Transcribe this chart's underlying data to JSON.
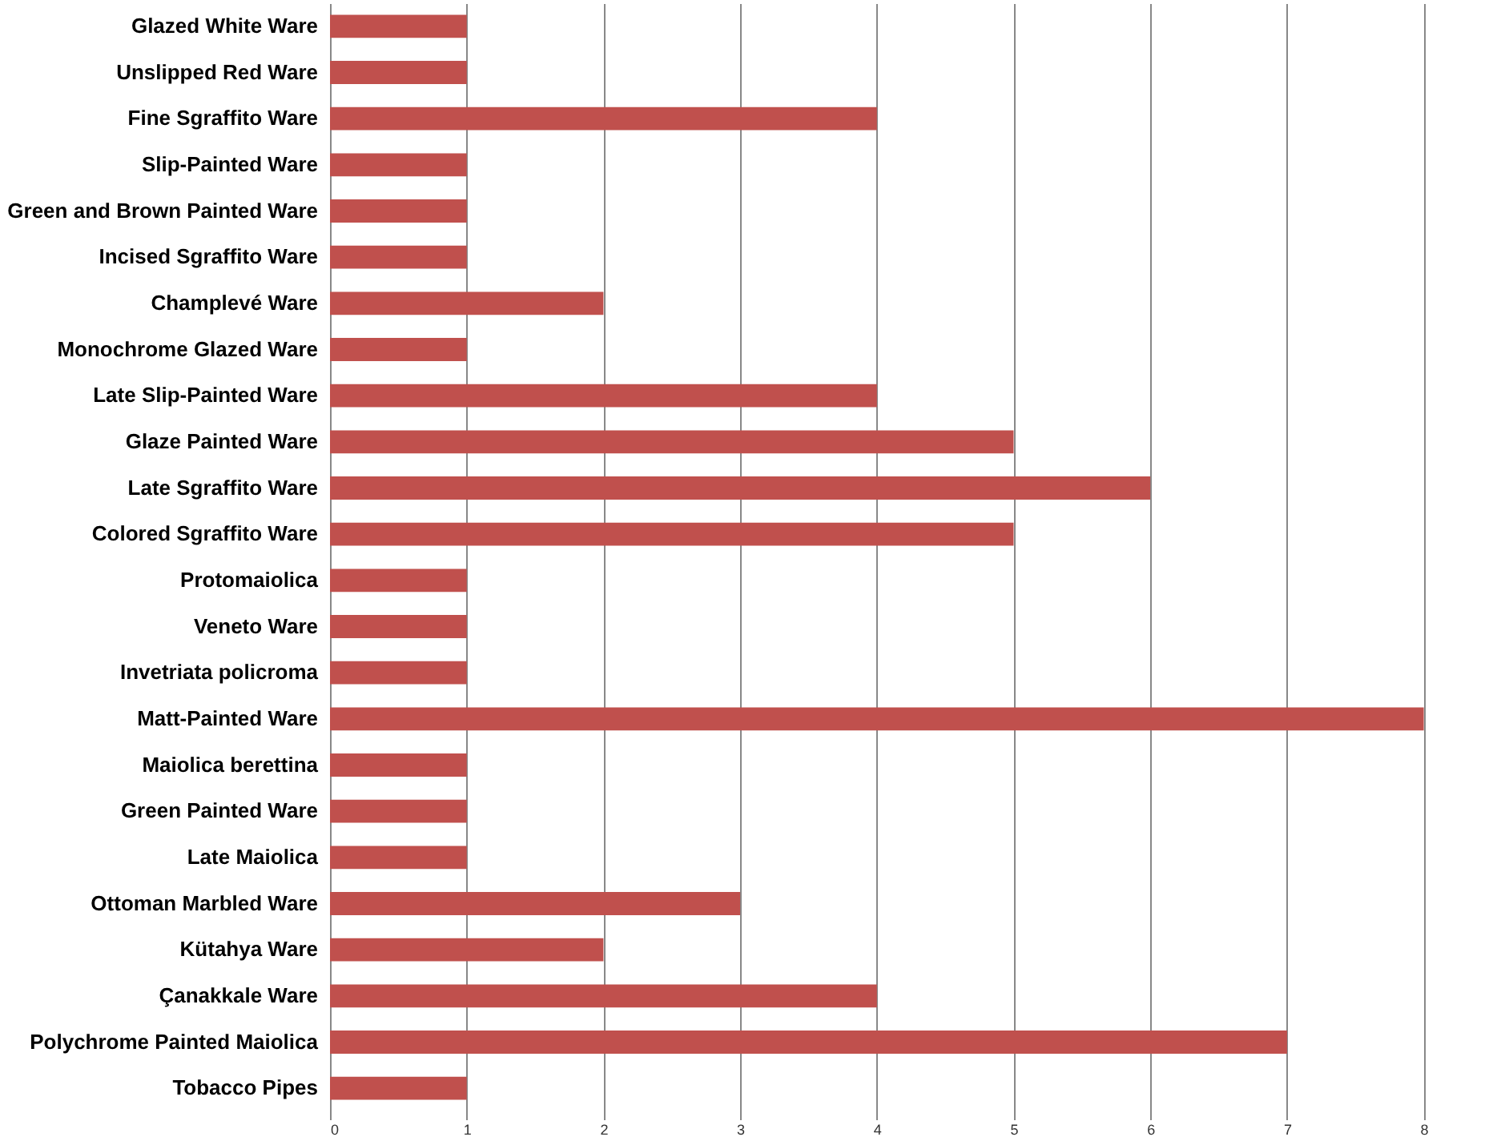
{
  "chart_data": {
    "type": "bar",
    "orientation": "horizontal",
    "categories": [
      "Glazed White Ware",
      "Unslipped Red Ware",
      "Fine Sgraffito Ware",
      "Slip-Painted Ware",
      "Green and Brown Painted Ware",
      "Incised Sgraffito Ware",
      "Champlevé Ware",
      "Monochrome Glazed Ware",
      "Late Slip-Painted Ware",
      "Glaze Painted Ware",
      "Late Sgraffito Ware",
      "Colored Sgraffito Ware",
      "Protomaiolica",
      "Veneto Ware",
      "Invetriata policroma",
      "Matt-Painted Ware",
      "Maiolica berettina",
      "Green Painted Ware",
      "Late Maiolica",
      "Ottoman Marbled Ware",
      "Kütahya Ware",
      "Çanakkale Ware",
      "Polychrome Painted Maiolica",
      "Tobacco Pipes"
    ],
    "values": [
      1,
      1,
      4,
      1,
      1,
      1,
      2,
      1,
      4,
      5,
      6,
      5,
      1,
      1,
      1,
      8,
      1,
      1,
      1,
      3,
      2,
      4,
      7,
      1
    ],
    "color": "#c0504d",
    "xlim": [
      0,
      8.6
    ],
    "xticks": [
      0,
      1,
      2,
      3,
      4,
      5,
      6,
      7,
      8
    ],
    "grid": "x"
  }
}
